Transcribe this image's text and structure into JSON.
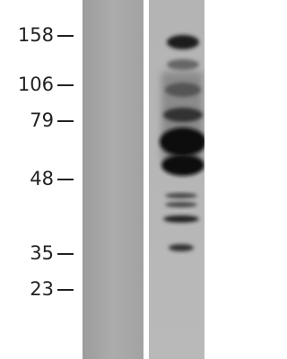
{
  "markers": [
    "158",
    "106",
    "79",
    "48",
    "35",
    "23"
  ]
}
